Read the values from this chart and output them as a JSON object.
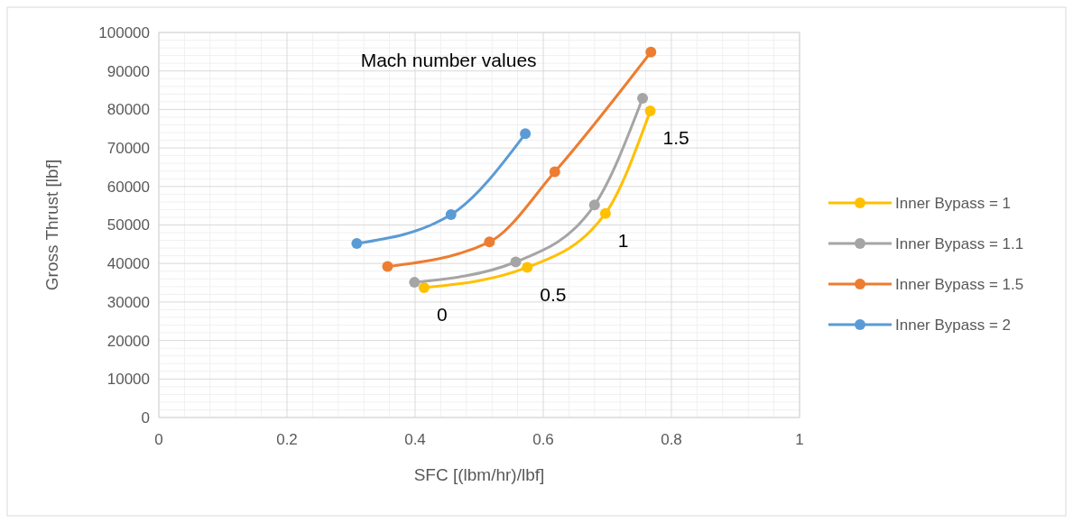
{
  "chart_data": {
    "type": "line",
    "xlabel": "SFC [(lbm/hr)/lbf]",
    "ylabel": "Gross Thrust [lbf]",
    "xlim": [
      0,
      1
    ],
    "xticks": [
      0,
      0.2,
      0.4,
      0.6,
      0.8,
      1
    ],
    "ylim": [
      0,
      100000
    ],
    "yticks": [
      0,
      10000,
      20000,
      30000,
      40000,
      50000,
      60000,
      70000,
      80000,
      90000,
      100000
    ],
    "grid": true,
    "legend": "right",
    "marker": "circle",
    "line_style": "solid",
    "series": [
      {
        "name": "Inner Bypass = 1",
        "color": "#ffc000",
        "x": [
          0.414,
          0.575,
          0.697,
          0.767
        ],
        "values": [
          33700,
          39000,
          53000,
          79600
        ]
      },
      {
        "name": "Inner Bypass = 1.1",
        "color": "#a5a5a5",
        "x": [
          0.399,
          0.557,
          0.68,
          0.755
        ],
        "values": [
          35100,
          40400,
          55200,
          82900
        ]
      },
      {
        "name": "Inner Bypass = 1.5",
        "color": "#ed7d31",
        "x": [
          0.357,
          0.516,
          0.618,
          0.768
        ],
        "values": [
          39200,
          45600,
          63800,
          94900
        ]
      },
      {
        "name": "Inner Bypass = 2",
        "color": "#5b9bd5",
        "x": [
          0.309,
          0.456,
          0.572
        ],
        "values": [
          45200,
          52700,
          73700
        ]
      }
    ],
    "annotations": [
      "Mach number values",
      {
        "text": "0",
        "x": 0.414,
        "y": 33700
      },
      {
        "text": "0.5",
        "x": 0.575,
        "y": 39000
      },
      {
        "text": "1",
        "x": 0.697,
        "y": 53000
      },
      {
        "text": "1.5",
        "x": 0.767,
        "y": 79600
      }
    ]
  }
}
